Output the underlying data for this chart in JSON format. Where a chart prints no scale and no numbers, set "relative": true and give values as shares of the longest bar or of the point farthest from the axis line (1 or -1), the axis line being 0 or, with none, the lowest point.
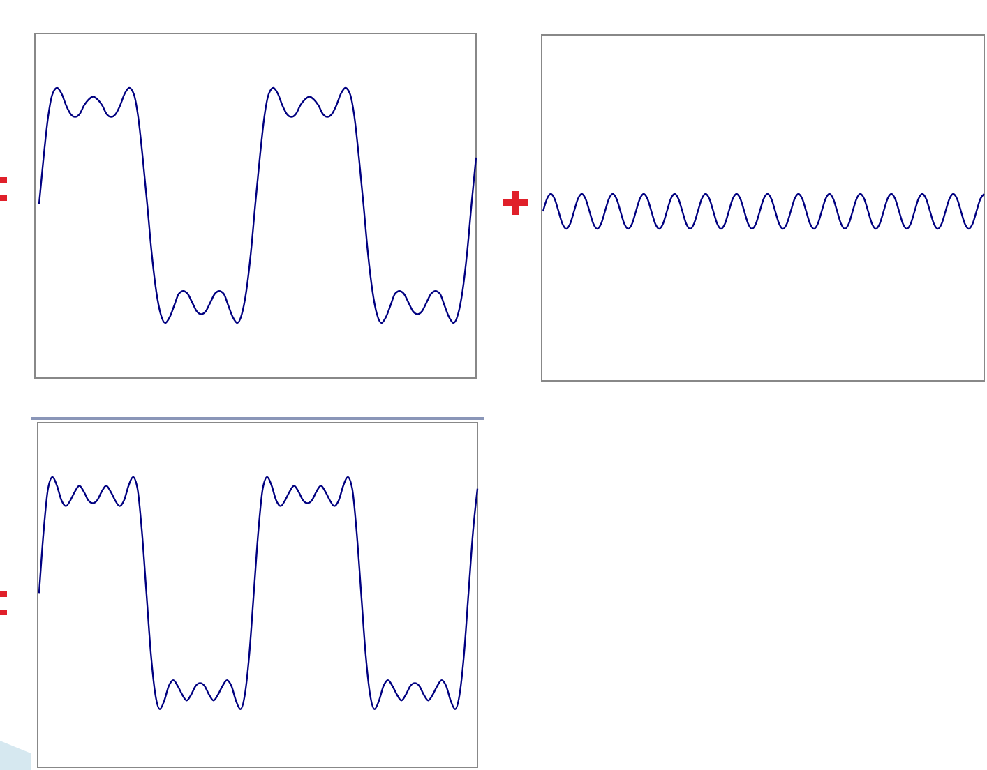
{
  "chart_data": [
    {
      "type": "line",
      "relative": true,
      "color": "#000080",
      "categories": [
        null,
        null,
        null,
        null,
        null,
        null,
        null,
        null,
        null,
        null,
        null,
        null,
        null,
        null,
        null,
        null,
        null,
        null,
        null,
        null,
        null,
        null,
        null,
        null,
        null,
        null,
        null,
        null,
        null,
        null,
        null,
        null,
        null,
        null,
        null,
        null,
        null,
        null,
        null,
        null,
        null,
        null,
        null,
        null,
        null,
        null,
        null,
        null,
        null,
        null,
        null,
        null,
        null,
        null,
        null,
        null,
        null,
        null,
        null,
        null,
        null,
        null,
        null,
        null,
        null,
        null,
        null,
        null,
        null,
        null,
        null,
        null,
        null,
        null,
        null,
        null,
        null,
        null,
        null,
        null,
        null,
        null,
        null,
        null,
        null,
        null,
        null,
        null,
        null,
        null,
        null,
        null,
        null,
        null,
        null,
        null,
        null,
        null
      ],
      "values": [
        0.6,
        0.76,
        0.9,
        0.98,
        1,
        0.98,
        0.94,
        0.91,
        0.9,
        0.91,
        0.94,
        0.96,
        0.97,
        0.96,
        0.94,
        0.91,
        0.9,
        0.91,
        0.94,
        0.98,
        1,
        0.98,
        0.9,
        0.76,
        0.6,
        0.43,
        0.3,
        0.22,
        0.19,
        0.21,
        0.25,
        0.29,
        0.3,
        0.29,
        0.26,
        0.23,
        0.22,
        0.23,
        0.26,
        0.29,
        0.3,
        0.29,
        0.25,
        0.21,
        0.19,
        0.22,
        0.3,
        0.43,
        0.6,
        0.76,
        0.9,
        0.98,
        1,
        0.98,
        0.94,
        0.91,
        0.9,
        0.91,
        0.94,
        0.96,
        0.97,
        0.96,
        0.94,
        0.91,
        0.9,
        0.91,
        0.94,
        0.98,
        1,
        0.98,
        0.9,
        0.76,
        0.6,
        0.43,
        0.3,
        0.22,
        0.19,
        0.21,
        0.25,
        0.29,
        0.3,
        0.29,
        0.26,
        0.23,
        0.22,
        0.23,
        0.26,
        0.29,
        0.3,
        0.29,
        0.25,
        0.21,
        0.19,
        0.22,
        0.3,
        0.43,
        0.6,
        0.76
      ]
    },
    {
      "type": "line",
      "relative": true,
      "color": "#000080",
      "categories": [
        null,
        null,
        null,
        null,
        null,
        null,
        null,
        null,
        null,
        null,
        null,
        null,
        null,
        null,
        null,
        null,
        null,
        null,
        null,
        null,
        null,
        null,
        null,
        null,
        null,
        null,
        null,
        null,
        null,
        null,
        null,
        null,
        null,
        null,
        null,
        null,
        null,
        null,
        null,
        null,
        null,
        null,
        null,
        null,
        null,
        null,
        null,
        null,
        null,
        null,
        null,
        null,
        null,
        null,
        null,
        null,
        null,
        null,
        null,
        null,
        null,
        null,
        null,
        null,
        null,
        null,
        null,
        null,
        null,
        null,
        null,
        null,
        null,
        null,
        null,
        null,
        null,
        null,
        null,
        null,
        null,
        null,
        null,
        null,
        null,
        null,
        null,
        null,
        null,
        null,
        null,
        null,
        null,
        null,
        null,
        null,
        null,
        null,
        null,
        null,
        null,
        null,
        null,
        null,
        null,
        null,
        null,
        null,
        null,
        null,
        null,
        null,
        null,
        null,
        null
      ],
      "values": [
        0.5,
        0.855,
        1,
        0.855,
        0.5,
        0.145,
        0,
        0.145,
        0.5,
        0.855,
        1,
        0.855,
        0.5,
        0.145,
        0,
        0.145,
        0.5,
        0.855,
        1,
        0.855,
        0.5,
        0.145,
        0,
        0.145,
        0.5,
        0.855,
        1,
        0.855,
        0.5,
        0.145,
        0,
        0.145,
        0.5,
        0.855,
        1,
        0.855,
        0.5,
        0.145,
        0,
        0.145,
        0.5,
        0.855,
        1,
        0.855,
        0.5,
        0.145,
        0,
        0.145,
        0.5,
        0.855,
        1,
        0.855,
        0.5,
        0.145,
        0,
        0.145,
        0.5,
        0.855,
        1,
        0.855,
        0.5,
        0.145,
        0,
        0.145,
        0.5,
        0.855,
        1,
        0.855,
        0.5,
        0.145,
        0,
        0.145,
        0.5,
        0.855,
        1,
        0.855,
        0.5,
        0.145,
        0,
        0.145,
        0.5,
        0.855,
        1,
        0.855,
        0.5,
        0.145,
        0,
        0.145,
        0.5,
        0.855,
        1,
        0.855,
        0.5,
        0.145,
        0,
        0.145,
        0.5,
        0.855,
        1,
        0.855,
        0.5,
        0.145,
        0,
        0.145,
        0.5,
        0.855,
        1,
        0.855,
        0.5,
        0.145,
        0,
        0.145,
        0.5,
        0.855,
        1
      ]
    },
    {
      "type": "line",
      "relative": true,
      "color": "#000080",
      "categories": [
        null,
        null,
        null,
        null,
        null,
        null,
        null,
        null,
        null,
        null,
        null,
        null,
        null,
        null,
        null,
        null,
        null,
        null,
        null,
        null,
        null,
        null,
        null,
        null,
        null,
        null,
        null,
        null,
        null,
        null,
        null,
        null,
        null,
        null,
        null,
        null,
        null,
        null,
        null,
        null,
        null,
        null,
        null,
        null,
        null,
        null,
        null,
        null,
        null,
        null,
        null,
        null,
        null,
        null,
        null,
        null,
        null,
        null,
        null,
        null,
        null,
        null,
        null,
        null,
        null,
        null,
        null,
        null,
        null,
        null,
        null,
        null,
        null,
        null,
        null,
        null,
        null,
        null,
        null,
        null,
        null,
        null,
        null,
        null,
        null,
        null,
        null,
        null,
        null,
        null,
        null,
        null,
        null,
        null,
        null,
        null,
        null,
        null,
        null
      ],
      "values": [
        0.6,
        0.81,
        0.96,
        1,
        0.97,
        0.92,
        0.9,
        0.92,
        0.95,
        0.97,
        0.95,
        0.92,
        0.91,
        0.92,
        0.95,
        0.97,
        0.95,
        0.92,
        0.9,
        0.92,
        0.97,
        1,
        0.96,
        0.81,
        0.6,
        0.39,
        0.25,
        0.2,
        0.23,
        0.28,
        0.3,
        0.28,
        0.25,
        0.23,
        0.25,
        0.28,
        0.29,
        0.28,
        0.25,
        0.23,
        0.25,
        0.28,
        0.3,
        0.28,
        0.23,
        0.2,
        0.25,
        0.39,
        0.6,
        0.81,
        0.96,
        1,
        0.97,
        0.92,
        0.9,
        0.92,
        0.95,
        0.97,
        0.95,
        0.92,
        0.91,
        0.92,
        0.95,
        0.97,
        0.95,
        0.92,
        0.9,
        0.92,
        0.97,
        1,
        0.96,
        0.81,
        0.6,
        0.39,
        0.25,
        0.2,
        0.23,
        0.28,
        0.3,
        0.28,
        0.25,
        0.23,
        0.25,
        0.28,
        0.29,
        0.28,
        0.25,
        0.23,
        0.25,
        0.28,
        0.3,
        0.28,
        0.23,
        0.2,
        0.25,
        0.39,
        0.6,
        0.81,
        0.96
      ]
    }
  ]
}
